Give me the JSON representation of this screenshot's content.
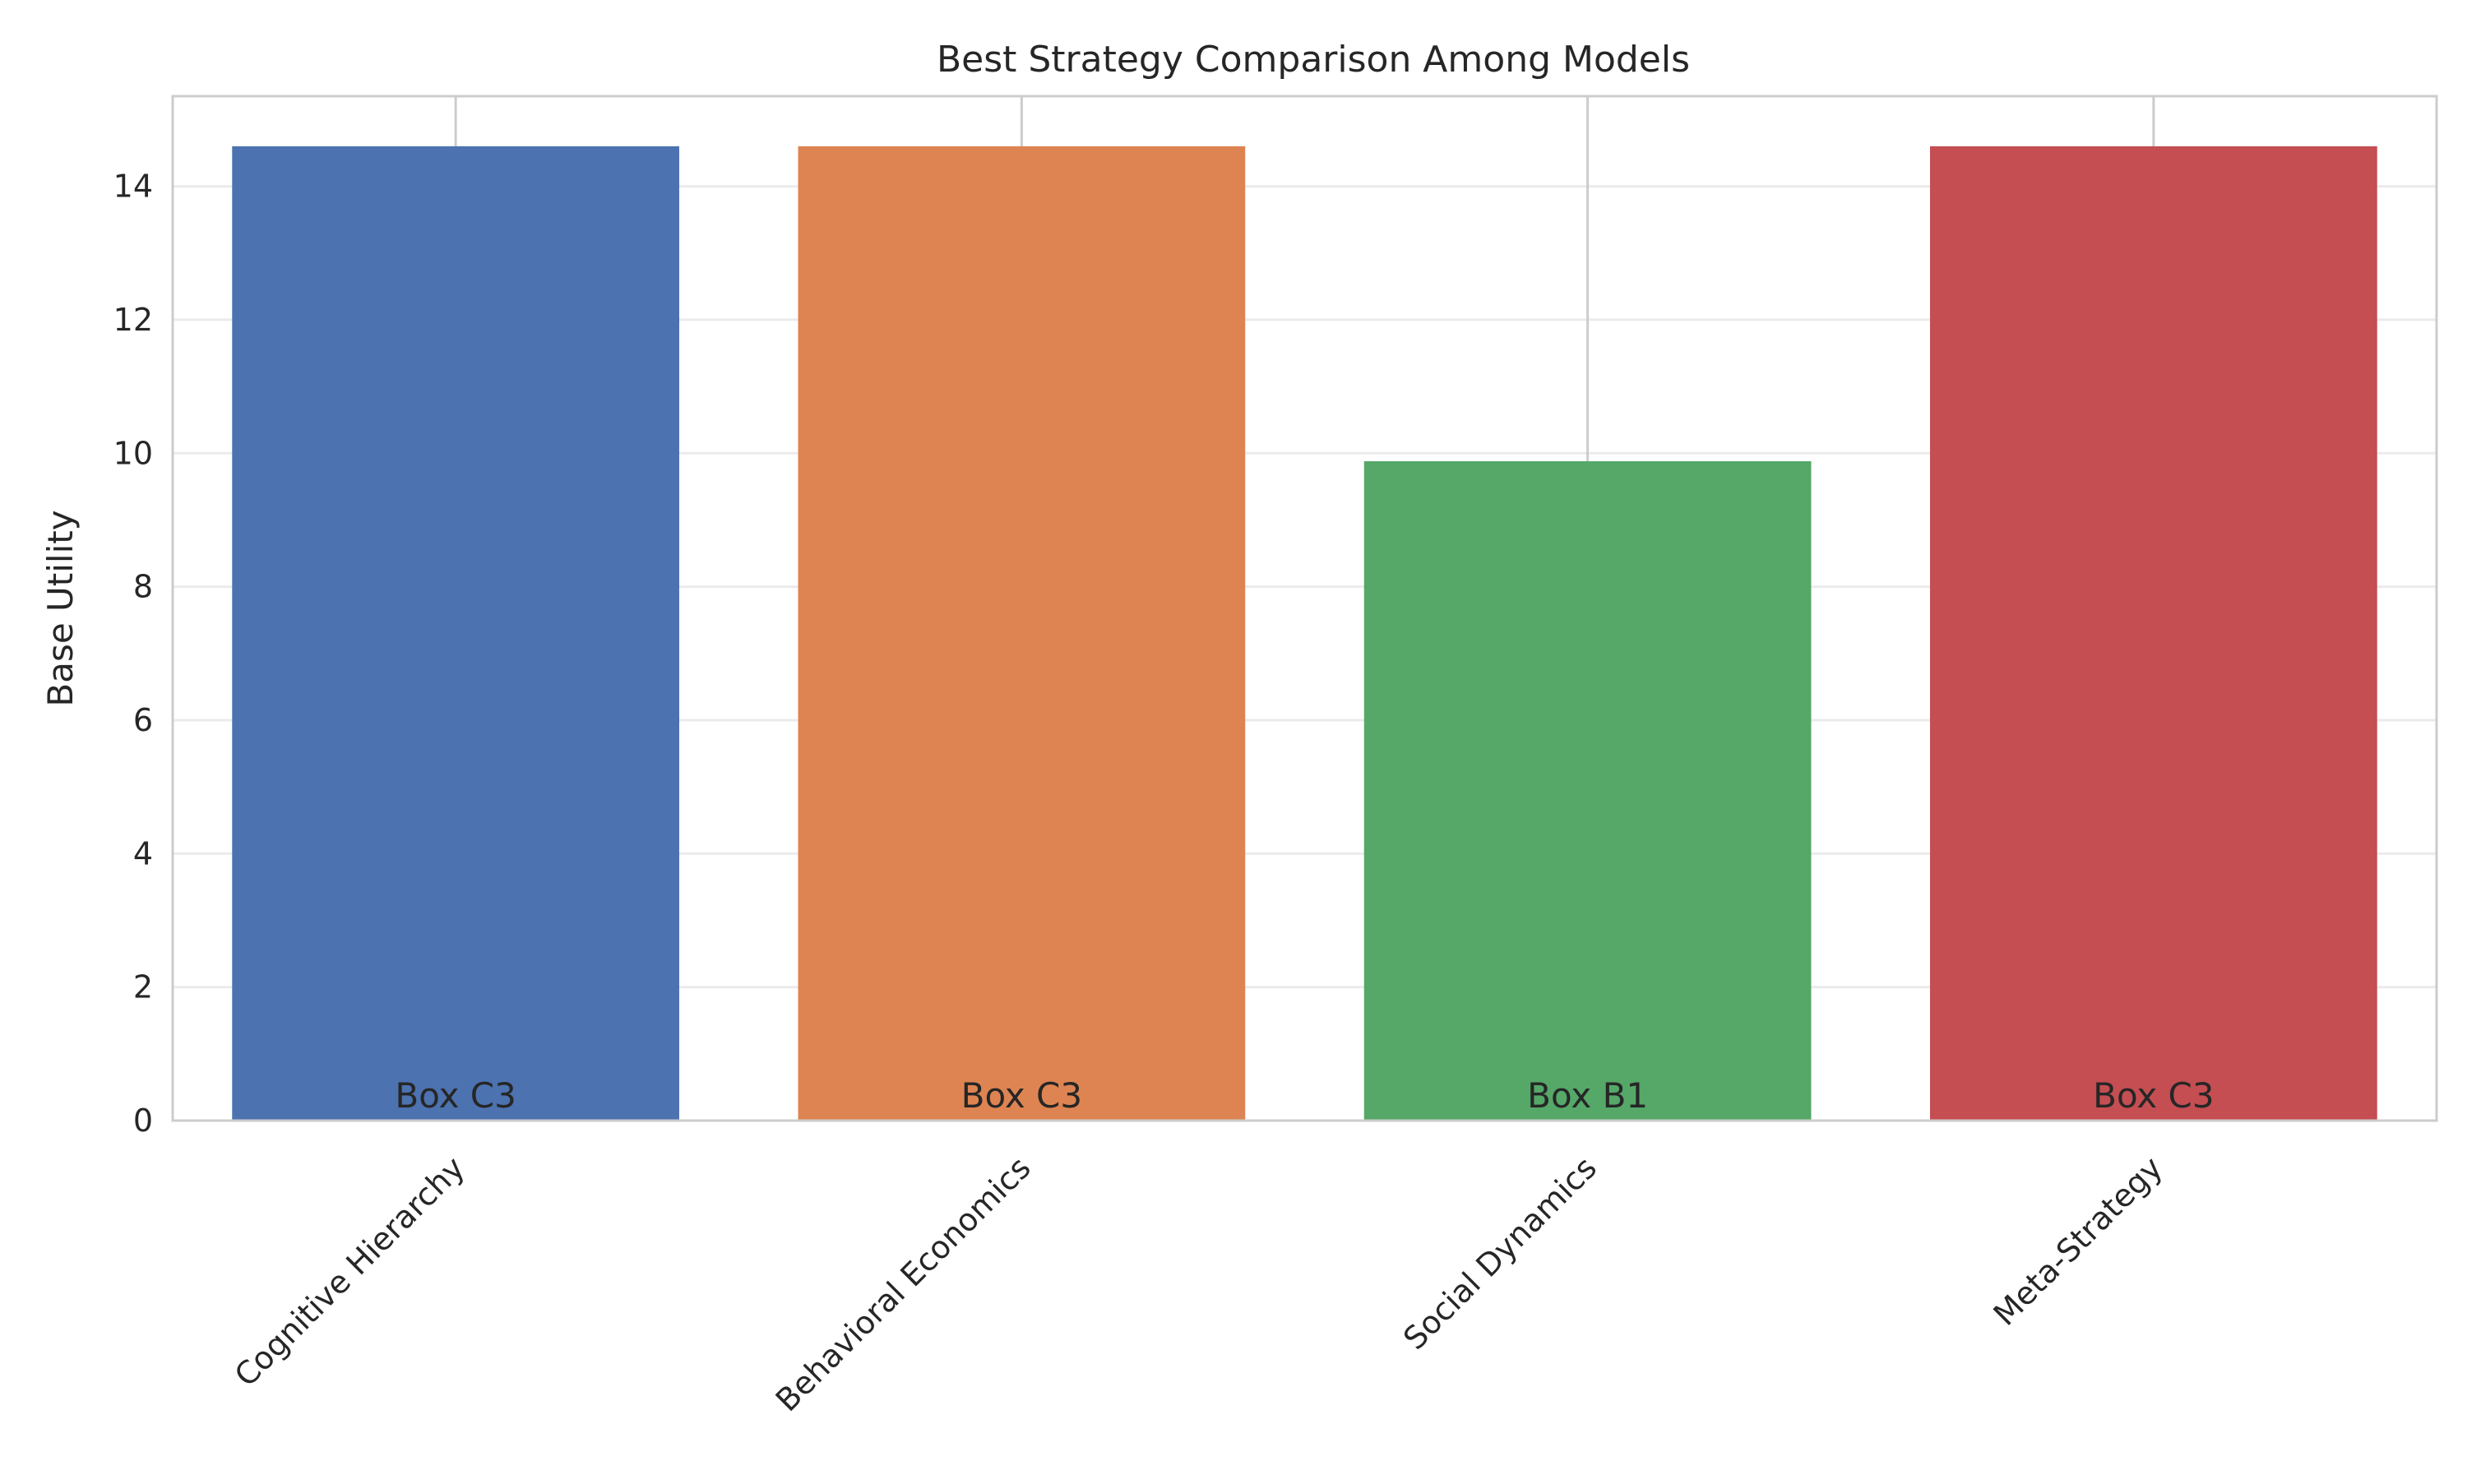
{
  "chart_data": {
    "type": "bar",
    "title": "Best Strategy Comparison Among Models",
    "xlabel": "",
    "ylabel": "Base Utility",
    "categories": [
      "Cognitive Hierarchy",
      "Behavioral Economics",
      "Social Dynamics",
      "Meta-Strategy"
    ],
    "values": [
      14.6,
      14.6,
      9.88,
      14.6
    ],
    "bar_labels": [
      "Box C3",
      "Box C3",
      "Box B1",
      "Box C3"
    ],
    "colors": [
      "#4c72b0",
      "#dd8452",
      "#55a868",
      "#c44e52"
    ],
    "ylim": [
      0,
      15.35
    ],
    "yticks": [
      0,
      2,
      4,
      6,
      8,
      10,
      12,
      14
    ],
    "grid": true,
    "legend": "none"
  }
}
